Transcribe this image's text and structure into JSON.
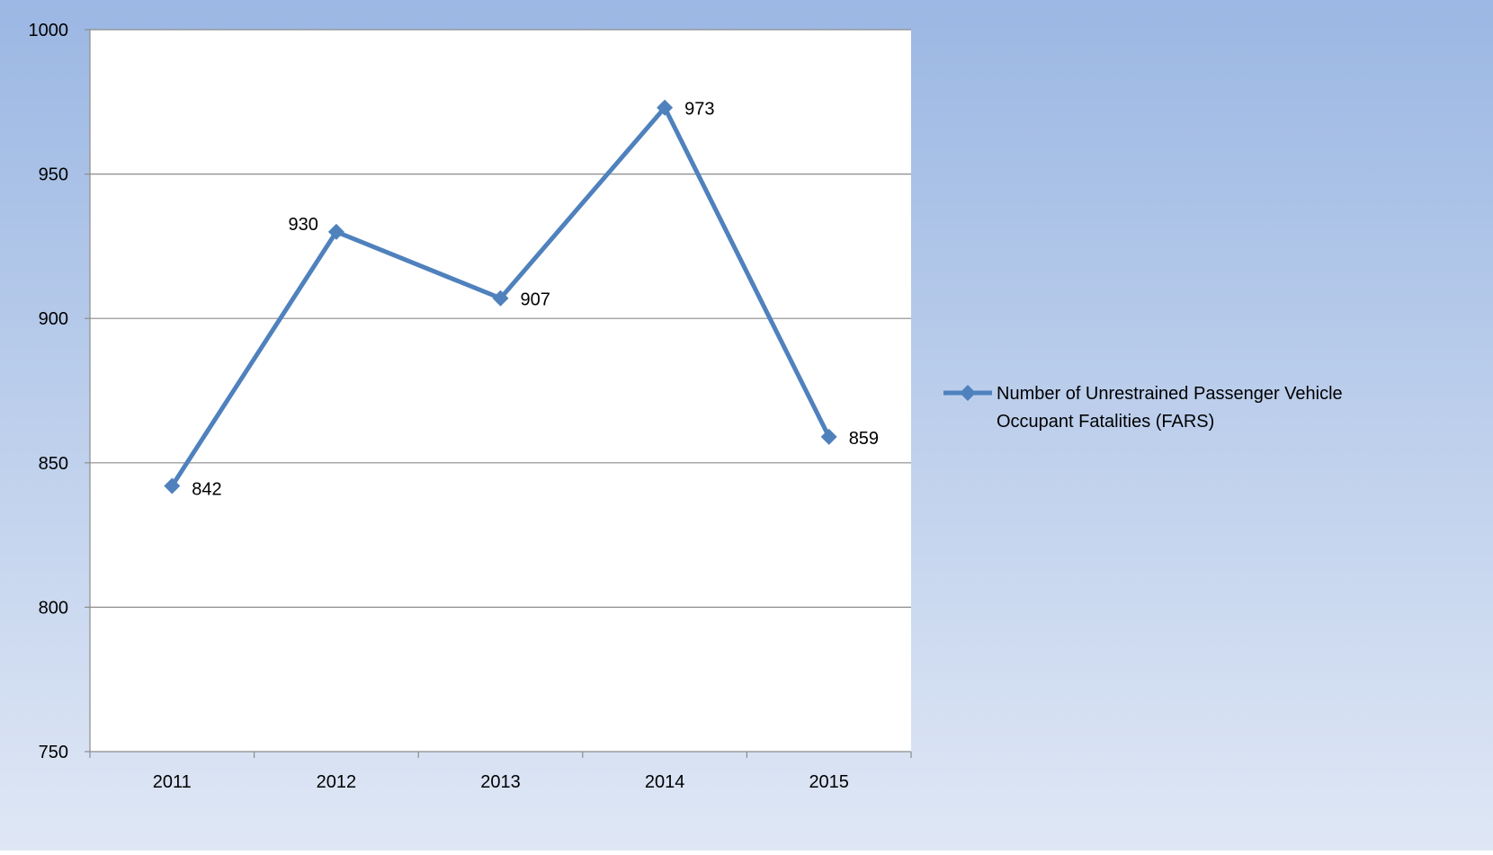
{
  "chart_data": {
    "type": "line",
    "title": "",
    "xlabel": "",
    "ylabel": "",
    "categories": [
      "2011",
      "2012",
      "2013",
      "2014",
      "2015"
    ],
    "series": [
      {
        "name": "Number of Unrestrained Passenger Vehicle Occupant Fatalities (FARS)",
        "values": [
          842,
          930,
          907,
          973,
          859
        ],
        "color": "#4f81bd",
        "marker": "diamond",
        "labels": [
          "842",
          "930",
          "907",
          "973",
          "859"
        ]
      }
    ],
    "ylim": [
      750,
      1000
    ],
    "yticks": [
      750,
      800,
      850,
      900,
      950,
      1000
    ],
    "ytick_labels": [
      "750",
      "800",
      "850",
      "900",
      "950",
      "1000"
    ],
    "grid": "horizontal",
    "legend_position": "right",
    "legend_lines": [
      "Number of Unrestrained Passenger Vehicle",
      "Occupant Fatalities (FARS)"
    ],
    "background_gradient": [
      "#9bb7e3",
      "#dfe7f5"
    ],
    "plot_background": "#ffffff",
    "gridline_color": "#8c8c8c",
    "text_color": "#000000"
  }
}
